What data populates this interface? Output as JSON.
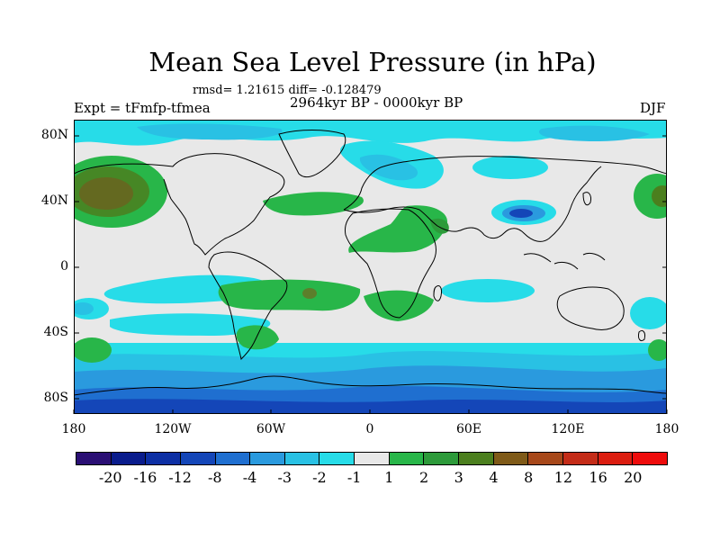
{
  "title": "Mean Sea Level Pressure (in hPa)",
  "stats": "rmsd= 1.21615  diff= -0.128479",
  "experiment": "Expt = tFmfp-tfmea",
  "period": "2964kyr BP - 0000kyr BP",
  "season": "DJF",
  "lat_labels": [
    "80N",
    "40N",
    "0",
    "40S",
    "80S"
  ],
  "lon_labels": [
    "180",
    "120W",
    "60W",
    "0",
    "60E",
    "120E",
    "180"
  ],
  "colorbar": {
    "labels": [
      "-20",
      "-16",
      "-12",
      "-8",
      "-4",
      "-3",
      "-2",
      "-1",
      "1",
      "2",
      "3",
      "4",
      "8",
      "12",
      "16",
      "20"
    ],
    "colors": [
      "#2a0f74",
      "#0a1c8c",
      "#0d2fa4",
      "#1446b8",
      "#1f6fd0",
      "#2a9ade",
      "#29c1e4",
      "#27dce8",
      "#e8e8e8",
      "#28b649",
      "#2d9a3a",
      "#4b7f1e",
      "#7f5a18",
      "#a7481a",
      "#c42c18",
      "#db1d10",
      "#ee0c0c"
    ]
  }
}
